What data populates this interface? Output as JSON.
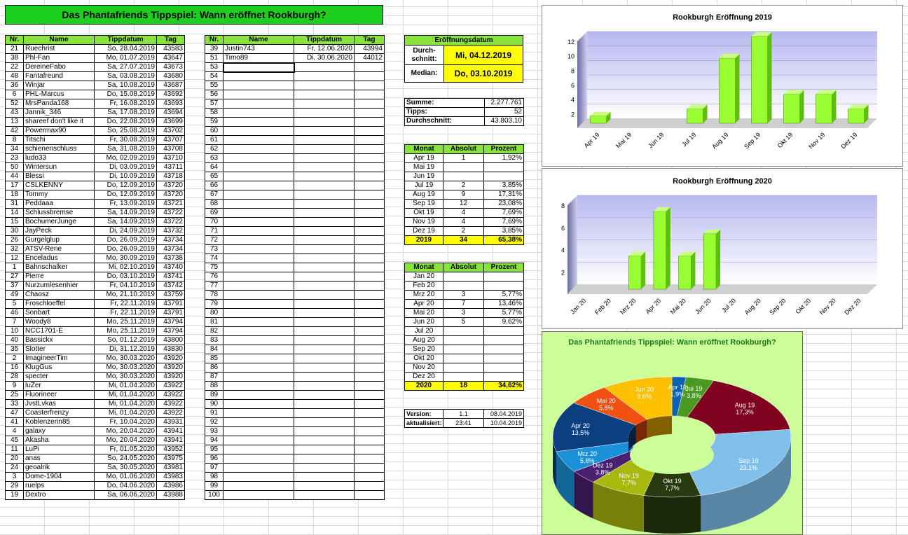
{
  "title": "Das Phantafriends Tippspiel: Wann eröffnet Rookburgh?",
  "list_headers": [
    "Nr.",
    "Name",
    "Tippdatum",
    "Tag"
  ],
  "list_left": [
    [
      "21",
      "Ruechrist",
      "So, 28.04.2019",
      "43583"
    ],
    [
      "38",
      "Phl-Fan",
      "Mo, 01.07.2019",
      "43647"
    ],
    [
      "22",
      "DereineFabo",
      "Sa, 27.07.2019",
      "43673"
    ],
    [
      "48",
      "Fantafreund",
      "Sa, 03.08.2019",
      "43680"
    ],
    [
      "36",
      "Winjar",
      "Sa, 10.08.2019",
      "43687"
    ],
    [
      "6",
      "PHL-Marcus",
      "Do, 15.08.2019",
      "43692"
    ],
    [
      "52",
      "MrsPanda168",
      "Fr, 16.08.2019",
      "43693"
    ],
    [
      "43",
      "Jannik_346",
      "Sa, 17.08.2019",
      "43694"
    ],
    [
      "13",
      "shareef don't like it",
      "Do, 22.08.2019",
      "43699"
    ],
    [
      "42",
      "Powermax90",
      "So, 25.08.2019",
      "43702"
    ],
    [
      "8",
      "Titschi",
      "Fr, 30.08.2019",
      "43707"
    ],
    [
      "34",
      "schienenschluss",
      "Sa, 31.08.2019",
      "43708"
    ],
    [
      "23",
      "ludo33",
      "Mo, 02.09.2019",
      "43710"
    ],
    [
      "50",
      "Wintersun",
      "Di, 03.09.2019",
      "43711"
    ],
    [
      "44",
      "Blessi",
      "Di, 10.09.2019",
      "43718"
    ],
    [
      "17",
      "CSLKENNY",
      "Do, 12.09.2019",
      "43720"
    ],
    [
      "18",
      "Tommy",
      "Do, 12.09.2019",
      "43720"
    ],
    [
      "31",
      "Peddaaa",
      "Fr, 13.09.2019",
      "43721"
    ],
    [
      "14",
      "Schlussbremse",
      "Sa, 14.09.2019",
      "43722"
    ],
    [
      "15",
      "BochumerJunge",
      "Sa, 14.09.2019",
      "43722"
    ],
    [
      "30",
      "JayPeck",
      "Di, 24.09.2019",
      "43732"
    ],
    [
      "26",
      "Gurgelglup",
      "Do, 26.09.2019",
      "43734"
    ],
    [
      "32",
      "ATSV-Rene",
      "Do, 26.09.2019",
      "43734"
    ],
    [
      "12",
      "Enceladus",
      "Mo, 30.09.2019",
      "43738"
    ],
    [
      "1",
      "Bahnschalker",
      "Mi, 02.10.2019",
      "43740"
    ],
    [
      "27",
      "Pierre",
      "Do, 03.10.2019",
      "43741"
    ],
    [
      "37",
      "Nurzumlesenhier",
      "Fr, 04.10.2019",
      "43742"
    ],
    [
      "49",
      "Chaosz",
      "Mo, 21.10.2019",
      "43759"
    ],
    [
      "5",
      "Froschloeffel",
      "Fr, 22.11.2019",
      "43791"
    ],
    [
      "46",
      "Sonbart",
      "Fr, 22.11.2019",
      "43791"
    ],
    [
      "7",
      "Woody8",
      "Mo, 25.11.2019",
      "43794"
    ],
    [
      "10",
      "NCC1701-E",
      "Mo, 25.11.2019",
      "43794"
    ],
    [
      "40",
      "Bassickx",
      "So, 01.12.2019",
      "43800"
    ],
    [
      "35",
      "Slotter",
      "Di, 31.12.2019",
      "43830"
    ],
    [
      "2",
      "ImagineerTim",
      "Mo, 30.03.2020",
      "43920"
    ],
    [
      "16",
      "KlugGus",
      "Mo, 30.03.2020",
      "43920"
    ],
    [
      "28",
      "specter",
      "Mo, 30.03.2020",
      "43920"
    ],
    [
      "9",
      "luZer",
      "Mi, 01.04.2020",
      "43922"
    ],
    [
      "25",
      "Fluorineer",
      "Mi, 01.04.2020",
      "43922"
    ],
    [
      "33",
      "JvstLvkas",
      "Mi, 01.04.2020",
      "43922"
    ],
    [
      "47",
      "Coasterfrenzy",
      "Mi, 01.04.2020",
      "43922"
    ],
    [
      "41",
      "Koblenzerin85",
      "Fr, 10.04.2020",
      "43931"
    ],
    [
      "4",
      "galaxy",
      "Mo, 20.04.2020",
      "43941"
    ],
    [
      "45",
      "Akasha",
      "Mo, 20.04.2020",
      "43941"
    ],
    [
      "11",
      "LuPi",
      "Fr, 01.05.2020",
      "43952"
    ],
    [
      "20",
      "anas",
      "So, 24.05.2020",
      "43975"
    ],
    [
      "24",
      "geoalrik",
      "Sa, 30.05.2020",
      "43981"
    ],
    [
      "3",
      "Dome-1904",
      "Mo, 01.06.2020",
      "43983"
    ],
    [
      "29",
      "ruelps",
      "Do, 04.06.2020",
      "43986"
    ],
    [
      "19",
      "Dextro",
      "Sa, 06.06.2020",
      "43988"
    ]
  ],
  "list_right": [
    [
      "39",
      "Justin743",
      "Fr, 12.06.2020",
      "43994"
    ],
    [
      "51",
      "Timo89",
      "Di, 30.06.2020",
      "44012"
    ],
    [
      "53",
      "",
      "",
      ""
    ],
    [
      "54",
      "",
      "",
      ""
    ],
    [
      "55",
      "",
      "",
      ""
    ],
    [
      "56",
      "",
      "",
      ""
    ],
    [
      "57",
      "",
      "",
      ""
    ],
    [
      "58",
      "",
      "",
      ""
    ],
    [
      "59",
      "",
      "",
      ""
    ],
    [
      "60",
      "",
      "",
      ""
    ],
    [
      "61",
      "",
      "",
      ""
    ],
    [
      "62",
      "",
      "",
      ""
    ],
    [
      "63",
      "",
      "",
      ""
    ],
    [
      "64",
      "",
      "",
      ""
    ],
    [
      "65",
      "",
      "",
      ""
    ],
    [
      "66",
      "",
      "",
      ""
    ],
    [
      "67",
      "",
      "",
      ""
    ],
    [
      "68",
      "",
      "",
      ""
    ],
    [
      "69",
      "",
      "",
      ""
    ],
    [
      "70",
      "",
      "",
      ""
    ],
    [
      "71",
      "",
      "",
      ""
    ],
    [
      "72",
      "",
      "",
      ""
    ],
    [
      "73",
      "",
      "",
      ""
    ],
    [
      "74",
      "",
      "",
      ""
    ],
    [
      "75",
      "",
      "",
      ""
    ],
    [
      "76",
      "",
      "",
      ""
    ],
    [
      "77",
      "",
      "",
      ""
    ],
    [
      "78",
      "",
      "",
      ""
    ],
    [
      "79",
      "",
      "",
      ""
    ],
    [
      "80",
      "",
      "",
      ""
    ],
    [
      "81",
      "",
      "",
      ""
    ],
    [
      "82",
      "",
      "",
      ""
    ],
    [
      "83",
      "",
      "",
      ""
    ],
    [
      "84",
      "",
      "",
      ""
    ],
    [
      "85",
      "",
      "",
      ""
    ],
    [
      "86",
      "",
      "",
      ""
    ],
    [
      "87",
      "",
      "",
      ""
    ],
    [
      "88",
      "",
      "",
      ""
    ],
    [
      "89",
      "",
      "",
      ""
    ],
    [
      "90",
      "",
      "",
      ""
    ],
    [
      "91",
      "",
      "",
      ""
    ],
    [
      "92",
      "",
      "",
      ""
    ],
    [
      "93",
      "",
      "",
      ""
    ],
    [
      "94",
      "",
      "",
      ""
    ],
    [
      "95",
      "",
      "",
      ""
    ],
    [
      "96",
      "",
      "",
      ""
    ],
    [
      "97",
      "",
      "",
      ""
    ],
    [
      "98",
      "",
      "",
      ""
    ],
    [
      "99",
      "",
      "",
      ""
    ],
    [
      "100",
      "",
      "",
      ""
    ]
  ],
  "eroeffnung": {
    "header": "Eröffnungsdatum",
    "avg_label": "Durch-schnitt:",
    "avg_value": "Mi, 04.12.2019",
    "median_label": "Median:",
    "median_value": "Do, 03.10.2019"
  },
  "summary": [
    [
      "Summe:",
      "2.277.761"
    ],
    [
      "Tipps:",
      "52"
    ],
    [
      "Durchschnitt:",
      "43.803,10"
    ]
  ],
  "month_headers": [
    "Monat",
    "Absolut",
    "Prozent"
  ],
  "months2019": [
    [
      "Apr 19",
      "1",
      "1,92%"
    ],
    [
      "Mai 19",
      "",
      ""
    ],
    [
      "Jun 19",
      "",
      ""
    ],
    [
      "Jul 19",
      "2",
      "3,85%"
    ],
    [
      "Aug 19",
      "9",
      "17,31%"
    ],
    [
      "Sep 19",
      "12",
      "23,08%"
    ],
    [
      "Okt 19",
      "4",
      "7,69%"
    ],
    [
      "Nov 19",
      "4",
      "7,69%"
    ],
    [
      "Dez 19",
      "2",
      "3,85%"
    ]
  ],
  "total2019": [
    "2019",
    "34",
    "65,38%"
  ],
  "months2020": [
    [
      "Jan 20",
      "",
      ""
    ],
    [
      "Feb 20",
      "",
      ""
    ],
    [
      "Mrz 20",
      "3",
      "5,77%"
    ],
    [
      "Apr 20",
      "7",
      "13,46%"
    ],
    [
      "Mai 20",
      "3",
      "5,77%"
    ],
    [
      "Jun 20",
      "5",
      "9,62%"
    ],
    [
      "Jul 20",
      "",
      ""
    ],
    [
      "Aug 20",
      "",
      ""
    ],
    [
      "Sep 20",
      "",
      ""
    ],
    [
      "Okt 20",
      "",
      ""
    ],
    [
      "Nov 20",
      "",
      ""
    ],
    [
      "Dez 20",
      "",
      ""
    ]
  ],
  "total2020": [
    "2020",
    "18",
    "34,62%"
  ],
  "version": [
    [
      "Version:",
      "1.1",
      "08.04.2019"
    ],
    [
      "aktualisiert:",
      "23:41",
      "10.04.2019"
    ]
  ],
  "colors": {
    "bar": "#99ff33",
    "bar_side": "#5fbf10",
    "title_green": "#1ed01e",
    "header_green": "#88e33d",
    "highlight": "#ffff00"
  },
  "chart_data": [
    {
      "type": "bar",
      "title": "Rookburgh Eröffnung 2019",
      "categories": [
        "Apr 19",
        "Mai 19",
        "Jun 19",
        "Jul 19",
        "Aug 19",
        "Sep 19",
        "Okt 19",
        "Nov 19",
        "Dez 19"
      ],
      "values": [
        1,
        0,
        0,
        2,
        9,
        12,
        4,
        4,
        2
      ],
      "yticks": [
        2,
        4,
        6,
        8,
        10,
        12
      ],
      "ylim": [
        0,
        12
      ]
    },
    {
      "type": "bar",
      "title": "Rookburgh Eröffnung 2020",
      "categories": [
        "Jan 20",
        "Feb 20",
        "Mrz 20",
        "Apr 20",
        "Mai 20",
        "Jun 20",
        "Jul 20",
        "Aug 20",
        "Sep 20",
        "Okt 20",
        "Nov 20",
        "Dez 20"
      ],
      "values": [
        0,
        0,
        3,
        7,
        3,
        5,
        0,
        0,
        0,
        0,
        0,
        0
      ],
      "yticks": [
        2,
        4,
        6,
        8
      ],
      "ylim": [
        0,
        8
      ]
    },
    {
      "type": "pie",
      "title": "Das Phantafriends Tippspiel: Wann eröffnet Rookburgh?",
      "slices": [
        {
          "label": "Apr 19",
          "value": 1.9,
          "text": "1,9%",
          "color": "#0b62b5"
        },
        {
          "label": "Jul 19",
          "value": 3.8,
          "text": "3,8%",
          "color": "#4a9a22"
        },
        {
          "label": "Aug 19",
          "value": 17.3,
          "text": "17,3%",
          "color": "#800020"
        },
        {
          "label": "Sep 19",
          "value": 23.1,
          "text": "23,1%",
          "color": "#7fbfea"
        },
        {
          "label": "Okt 19",
          "value": 7.7,
          "text": "7,7%",
          "color": "#2a3a10"
        },
        {
          "label": "Nov 19",
          "value": 7.7,
          "text": "7,7%",
          "color": "#a8b80c"
        },
        {
          "label": "Dez 19",
          "value": 3.8,
          "text": "3,8%",
          "color": "#4a2070"
        },
        {
          "label": "Mrz 20",
          "value": 5.8,
          "text": "5,8%",
          "color": "#1a90d8"
        },
        {
          "label": "Apr 20",
          "value": 13.5,
          "text": "13,5%",
          "color": "#0a3f80"
        },
        {
          "label": "Mai 20",
          "value": 5.8,
          "text": "5,8%",
          "color": "#f05010"
        },
        {
          "label": "Jun 20",
          "value": 9.6,
          "text": "9,6%",
          "color": "#ffc000"
        }
      ]
    }
  ]
}
